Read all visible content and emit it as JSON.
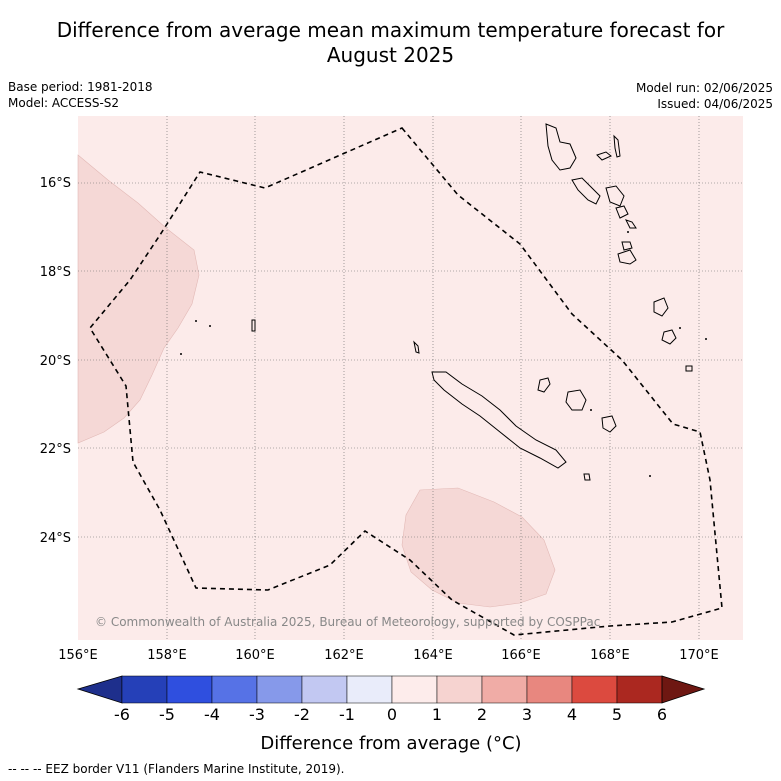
{
  "title_line1": "Difference from average mean maximum temperature forecast for",
  "title_line2": "August 2025",
  "meta_left": {
    "base_period": "Base period: 1981-2018",
    "model": "Model: ACCESS-S2"
  },
  "meta_right": {
    "model_run": "Model run: 02/06/2025",
    "issued": "Issued: 04/06/2025"
  },
  "map": {
    "lon_range": [
      156,
      171
    ],
    "lat_range": [
      -26.2,
      -14.4
    ],
    "lat_ticks": [
      "16°S",
      "18°S",
      "20°S",
      "22°S",
      "24°S"
    ],
    "lon_ticks": [
      "156°E",
      "158°E",
      "160°E",
      "162°E",
      "164°E",
      "166°E",
      "168°E",
      "170°E"
    ],
    "background_color": "#fcebea",
    "anomaly_color": "#f5d8d6",
    "credit": "© Commonwealth of Australia 2025, Bureau of Meteorology, supported by COSPPac"
  },
  "colorbar": {
    "label": "Difference from average (°C)",
    "ticks": [
      "-6",
      "-5",
      "-4",
      "-3",
      "-2",
      "-1",
      "0",
      "1",
      "2",
      "3",
      "4",
      "5",
      "6"
    ],
    "colors": [
      "#1e2f8c",
      "#2540b8",
      "#2f4fdf",
      "#5672e6",
      "#8699ea",
      "#c2c8f2",
      "#e9ecfa",
      "#fdeceb",
      "#f6d3d0",
      "#f0aca6",
      "#e8877f",
      "#dc4a3f",
      "#ab2820",
      "#6e1712"
    ]
  },
  "footer": "--  --  -- EEZ border V11 (Flanders Marine Institute, 2019)."
}
